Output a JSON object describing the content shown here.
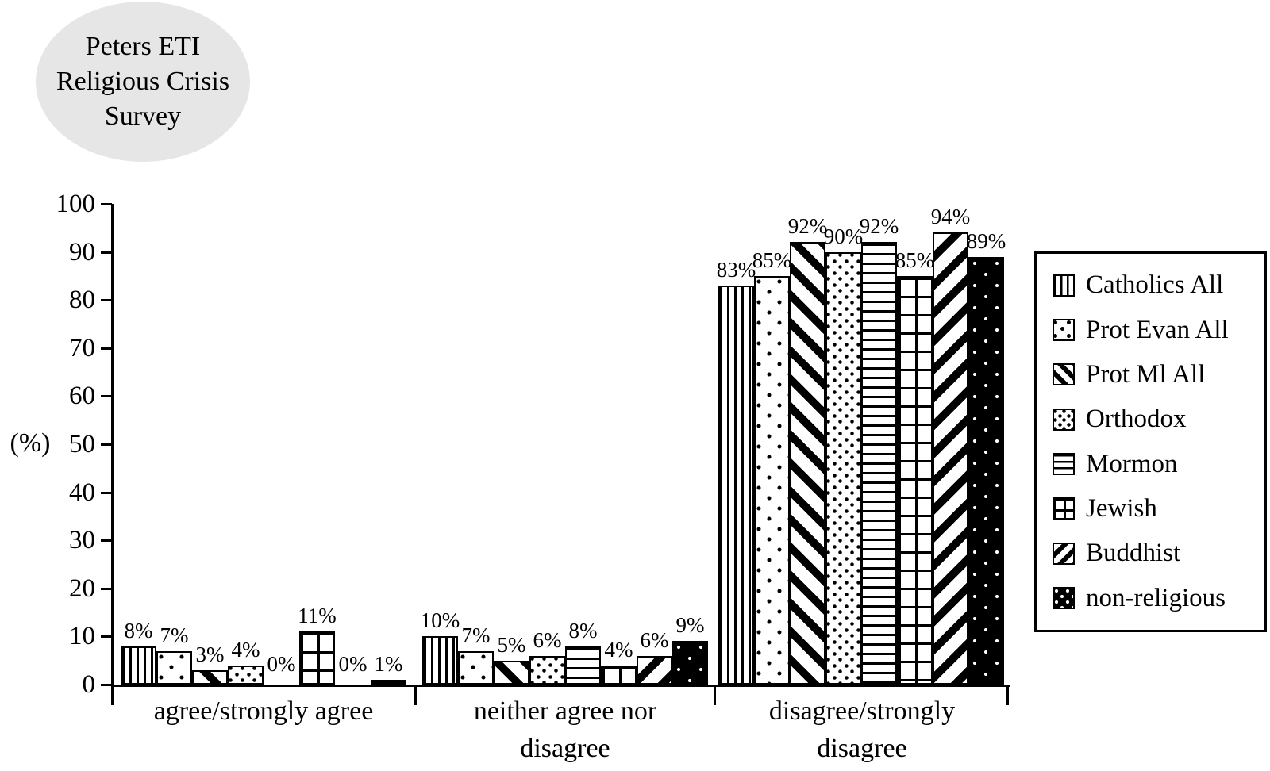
{
  "title": {
    "lines": [
      "Peters ETI",
      "Religious Crisis",
      "Survey"
    ]
  },
  "chart_data": {
    "type": "bar",
    "title": "Peters ETI Religious Crisis Survey",
    "xlabel": "",
    "ylabel": "(%)",
    "ylim": [
      0,
      100
    ],
    "yticks": [
      100,
      90,
      80,
      70,
      60,
      50,
      40,
      30,
      20,
      10,
      0
    ],
    "grid": false,
    "legend_position": "right",
    "categories": [
      "agree/strongly agree",
      "neither agree nor disagree",
      "disagree/strongly disagree"
    ],
    "category_label_lines": [
      [
        "agree/strongly agree"
      ],
      [
        "neither agree nor",
        "disagree"
      ],
      [
        "disagree/strongly",
        "disagree"
      ]
    ],
    "series": [
      {
        "name": "Catholics All",
        "pattern": "vertical-stripes",
        "values": [
          8,
          10,
          83
        ],
        "labels": [
          "8%",
          "10%",
          "83%"
        ]
      },
      {
        "name": "Prot Evan All",
        "pattern": "sparse-dots",
        "values": [
          7,
          7,
          85
        ],
        "labels": [
          "7%",
          "7%",
          "85%"
        ]
      },
      {
        "name": "Prot Ml All",
        "pattern": "diagonal-down-stripes",
        "values": [
          3,
          5,
          92
        ],
        "labels": [
          "3%",
          "5%",
          "92%"
        ]
      },
      {
        "name": "Orthodox",
        "pattern": "dense-dots",
        "values": [
          4,
          6,
          90
        ],
        "labels": [
          "4%",
          "6%",
          "90%"
        ]
      },
      {
        "name": "Mormon",
        "pattern": "horizontal-stripes",
        "values": [
          0,
          8,
          92
        ],
        "labels": [
          "0%",
          "8%",
          "92%"
        ]
      },
      {
        "name": "Jewish",
        "pattern": "grid-tiles",
        "values": [
          11,
          4,
          85
        ],
        "labels": [
          "11%",
          "4%",
          "85%"
        ]
      },
      {
        "name": "Buddhist",
        "pattern": "diagonal-up-stripes",
        "values": [
          0,
          6,
          94
        ],
        "labels": [
          "0%",
          "6%",
          "94%"
        ]
      },
      {
        "name": "non-religious",
        "pattern": "black-white-dots",
        "values": [
          1,
          9,
          89
        ],
        "labels": [
          "1%",
          "9%",
          "89%"
        ]
      }
    ],
    "colors": {
      "foreground": "#000000",
      "background": "#ffffff",
      "title_bubble": "#e6e6e6"
    }
  }
}
